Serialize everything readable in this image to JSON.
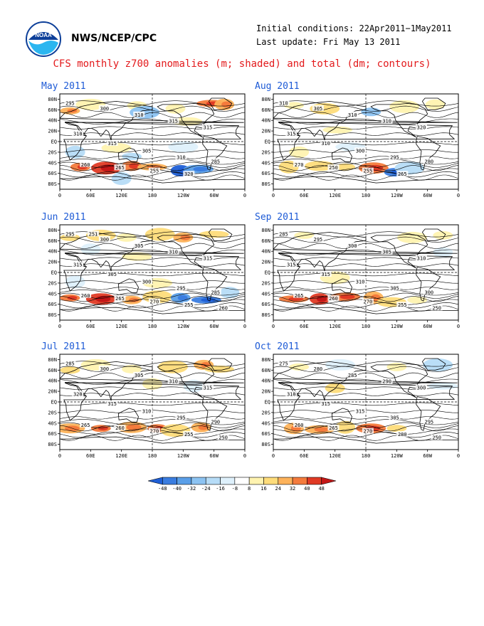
{
  "header": {
    "org": "NWS/NCEP/CPC",
    "initial_conditions": "Initial conditions: 22Apr2011−1May2011",
    "last_update": "Last update: Fri May 13 2011",
    "title": "CFS monthly z700 anomalies (m; shaded) and total (dm; contours)",
    "logo_icon": "noaa-logo-icon"
  },
  "lat_labels": [
    "80N",
    "60N",
    "40N",
    "20N",
    "EQ",
    "20S",
    "40S",
    "60S",
    "80S"
  ],
  "lon_labels": [
    "0",
    "60E",
    "120E",
    "180",
    "120W",
    "60W",
    "0"
  ],
  "panels": [
    {
      "id": "may",
      "title": "May 2011",
      "contours": [
        "295",
        "300",
        "310",
        "315",
        "315",
        "310",
        "315",
        "305",
        "310",
        "285",
        "260",
        "265",
        "255",
        "320"
      ],
      "anomalies": [
        {
          "lon": 20,
          "lat": 58,
          "v": 32
        },
        {
          "lon": 60,
          "lat": 70,
          "v": 16
        },
        {
          "lon": 150,
          "lat": 68,
          "v": 16
        },
        {
          "lon": 165,
          "lat": 55,
          "v": -24
        },
        {
          "lon": 225,
          "lat": 62,
          "v": 16
        },
        {
          "lon": 295,
          "lat": 72,
          "v": 40
        },
        {
          "lon": 320,
          "lat": 70,
          "v": 32
        },
        {
          "lon": 248,
          "lat": 38,
          "v": 16
        },
        {
          "lon": 30,
          "lat": -20,
          "v": -16
        },
        {
          "lon": 110,
          "lat": -12,
          "v": 16
        },
        {
          "lon": 140,
          "lat": -28,
          "v": -16
        },
        {
          "lon": 240,
          "lat": -10,
          "v": -8
        },
        {
          "lon": 40,
          "lat": -48,
          "v": 40
        },
        {
          "lon": 90,
          "lat": -50,
          "v": 48
        },
        {
          "lon": 140,
          "lat": -46,
          "v": 40
        },
        {
          "lon": 180,
          "lat": -48,
          "v": 32
        },
        {
          "lon": 235,
          "lat": -55,
          "v": -48
        },
        {
          "lon": 270,
          "lat": -52,
          "v": -32
        },
        {
          "lon": 120,
          "lat": -70,
          "v": -16
        }
      ]
    },
    {
      "id": "aug",
      "title": "Aug 2011",
      "contours": [
        "310",
        "305",
        "310",
        "310",
        "320",
        "315",
        "310",
        "300",
        "295",
        "280",
        "270",
        "250",
        "255",
        "265"
      ],
      "anomalies": [
        {
          "lon": 40,
          "lat": 68,
          "v": 16
        },
        {
          "lon": 100,
          "lat": 62,
          "v": 24
        },
        {
          "lon": 190,
          "lat": 56,
          "v": -24
        },
        {
          "lon": 255,
          "lat": 66,
          "v": 16
        },
        {
          "lon": 315,
          "lat": 70,
          "v": 16
        },
        {
          "lon": 125,
          "lat": 22,
          "v": 16
        },
        {
          "lon": 50,
          "lat": -20,
          "v": 16
        },
        {
          "lon": 150,
          "lat": -10,
          "v": -8
        },
        {
          "lon": 30,
          "lat": -48,
          "v": 24
        },
        {
          "lon": 90,
          "lat": -46,
          "v": 24
        },
        {
          "lon": 140,
          "lat": -48,
          "v": 24
        },
        {
          "lon": 195,
          "lat": -50,
          "v": 40
        },
        {
          "lon": 235,
          "lat": -58,
          "v": -40
        },
        {
          "lon": 265,
          "lat": -50,
          "v": -16
        },
        {
          "lon": 310,
          "lat": -44,
          "v": 8
        }
      ]
    },
    {
      "id": "jun",
      "title": "Jun 2011",
      "contours": [
        "295",
        "300",
        "305",
        "310",
        "315",
        "315",
        "305",
        "300",
        "295",
        "285",
        "260",
        "265",
        "270",
        "255",
        "260",
        "251"
      ],
      "anomalies": [
        {
          "lon": 20,
          "lat": 66,
          "v": 24
        },
        {
          "lon": 80,
          "lat": 70,
          "v": 24
        },
        {
          "lon": 130,
          "lat": 66,
          "v": 16
        },
        {
          "lon": 195,
          "lat": 72,
          "v": 24
        },
        {
          "lon": 240,
          "lat": 66,
          "v": 32
        },
        {
          "lon": 300,
          "lat": 72,
          "v": 24
        },
        {
          "lon": 60,
          "lat": 44,
          "v": -8
        },
        {
          "lon": 150,
          "lat": 30,
          "v": 16
        },
        {
          "lon": 30,
          "lat": -18,
          "v": -8
        },
        {
          "lon": 190,
          "lat": -20,
          "v": 16
        },
        {
          "lon": 20,
          "lat": -48,
          "v": 40
        },
        {
          "lon": 80,
          "lat": -50,
          "v": 48
        },
        {
          "lon": 140,
          "lat": -52,
          "v": 32
        },
        {
          "lon": 190,
          "lat": -46,
          "v": 24
        },
        {
          "lon": 235,
          "lat": -48,
          "v": -32
        },
        {
          "lon": 285,
          "lat": -52,
          "v": -40
        },
        {
          "lon": 330,
          "lat": -38,
          "v": -16
        }
      ]
    },
    {
      "id": "sep",
      "title": "Sep 2011",
      "contours": [
        "285",
        "295",
        "300",
        "305",
        "310",
        "315",
        "315",
        "310",
        "305",
        "300",
        "265",
        "260",
        "270",
        "255",
        "250"
      ],
      "anomalies": [
        {
          "lon": 60,
          "lat": 70,
          "v": 16
        },
        {
          "lon": 270,
          "lat": 66,
          "v": 16
        },
        {
          "lon": 330,
          "lat": 70,
          "v": 16
        },
        {
          "lon": 120,
          "lat": -10,
          "v": 16
        },
        {
          "lon": 330,
          "lat": 38,
          "v": -8
        },
        {
          "lon": 40,
          "lat": -50,
          "v": 40
        },
        {
          "lon": 90,
          "lat": -50,
          "v": 48
        },
        {
          "lon": 140,
          "lat": -46,
          "v": 40
        },
        {
          "lon": 195,
          "lat": -48,
          "v": 32
        },
        {
          "lon": 230,
          "lat": -56,
          "v": 24
        },
        {
          "lon": 280,
          "lat": -52,
          "v": 16
        }
      ]
    },
    {
      "id": "jul",
      "title": "Jul 2011",
      "contours": [
        "285",
        "300",
        "305",
        "310",
        "315",
        "320",
        "315",
        "310",
        "295",
        "290",
        "265",
        "260",
        "270",
        "255",
        "250"
      ],
      "anomalies": [
        {
          "lon": 20,
          "lat": 60,
          "v": 24
        },
        {
          "lon": 70,
          "lat": 70,
          "v": 16
        },
        {
          "lon": 140,
          "lat": 62,
          "v": 16
        },
        {
          "lon": 220,
          "lat": 66,
          "v": 24
        },
        {
          "lon": 280,
          "lat": 70,
          "v": 32
        },
        {
          "lon": 310,
          "lat": 62,
          "v": 24
        },
        {
          "lon": 180,
          "lat": 34,
          "v": 16
        },
        {
          "lon": 40,
          "lat": -10,
          "v": 8
        },
        {
          "lon": 260,
          "lat": 30,
          "v": -8
        },
        {
          "lon": 20,
          "lat": -50,
          "v": 32
        },
        {
          "lon": 80,
          "lat": -50,
          "v": 40
        },
        {
          "lon": 140,
          "lat": -48,
          "v": 32
        },
        {
          "lon": 190,
          "lat": -50,
          "v": 40
        },
        {
          "lon": 225,
          "lat": -54,
          "v": 24
        },
        {
          "lon": 275,
          "lat": -48,
          "v": 32
        }
      ]
    },
    {
      "id": "oct",
      "title": "Oct 2011",
      "contours": [
        "275",
        "280",
        "285",
        "290",
        "300",
        "310",
        "315",
        "315",
        "305",
        "295",
        "260",
        "265",
        "270",
        "280",
        "250"
      ],
      "anomalies": [
        {
          "lon": 50,
          "lat": 66,
          "v": 16
        },
        {
          "lon": 130,
          "lat": 70,
          "v": -8
        },
        {
          "lon": 240,
          "lat": 66,
          "v": 16
        },
        {
          "lon": 320,
          "lat": 70,
          "v": -16
        },
        {
          "lon": 120,
          "lat": 26,
          "v": 24
        },
        {
          "lon": 330,
          "lat": 30,
          "v": -8
        },
        {
          "lon": 40,
          "lat": -50,
          "v": 32
        },
        {
          "lon": 90,
          "lat": -52,
          "v": 32
        },
        {
          "lon": 140,
          "lat": -48,
          "v": 24
        },
        {
          "lon": 190,
          "lat": -50,
          "v": 40
        },
        {
          "lon": 240,
          "lat": -50,
          "v": 24
        },
        {
          "lon": 300,
          "lat": -44,
          "v": 8
        }
      ]
    }
  ],
  "colorbar": {
    "labels": [
      "-48",
      "-40",
      "-32",
      "-24",
      "-16",
      "-8",
      "8",
      "16",
      "24",
      "32",
      "40",
      "48"
    ],
    "colors": [
      "#1f5fd6",
      "#3a7de0",
      "#5a9fe8",
      "#8cc3f2",
      "#b6dcf7",
      "#def0fb",
      "#ffffff",
      "#fff3b0",
      "#fedc7a",
      "#fdb25a",
      "#f47b3c",
      "#e03a24",
      "#c41717"
    ]
  }
}
